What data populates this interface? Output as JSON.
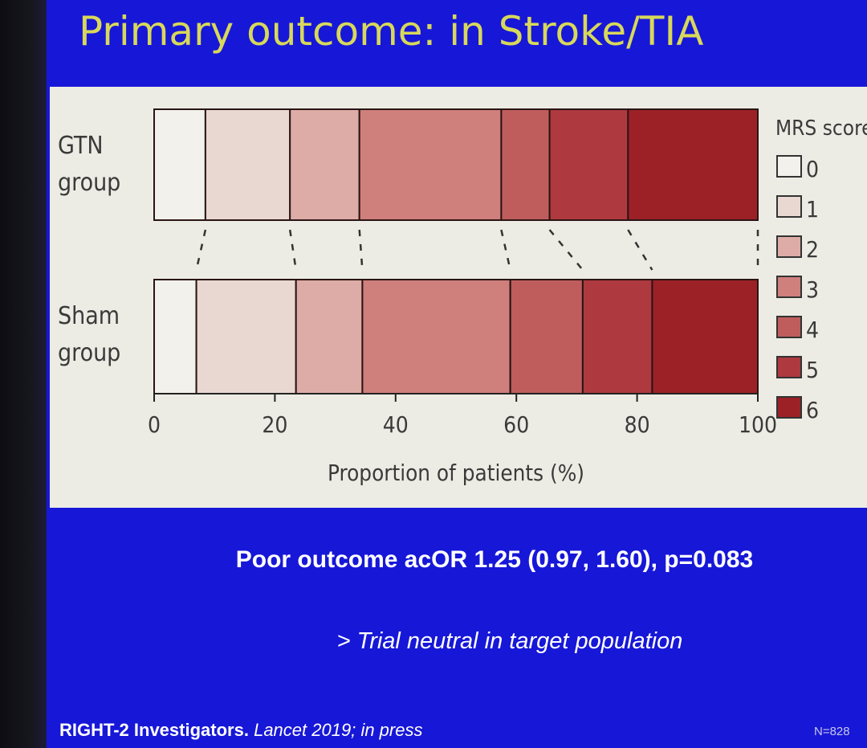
{
  "slide": {
    "title": "Primary outcome: in Stroke/TIA",
    "result_line": "Poor outcome acOR 1.25 (0.97, 1.60), p=0.083",
    "conclusion": "> Trial neutral in target population",
    "citation": {
      "authors": "RIGHT-2 Investigators.",
      "journal_year": "Lancet 2019;",
      "status": "in press"
    },
    "sample_size": "N=828"
  },
  "colors": {
    "slide_background": "#1717d8",
    "title": "#d8d85a",
    "panel_background": "#ecece4",
    "mrs": [
      "#f2f1ec",
      "#e9d8d1",
      "#deaca6",
      "#cf7f7c",
      "#bf5d5d",
      "#ae3a3f",
      "#9c2127"
    ]
  },
  "chart_data": {
    "type": "bar",
    "orientation": "horizontal",
    "stacked": true,
    "xlabel": "Proportion of patients (%)",
    "xlim": [
      0,
      100
    ],
    "xticks": [
      "0",
      "20",
      "40",
      "60",
      "80",
      "100"
    ],
    "categories": [
      {
        "label_lines": [
          "GTN",
          "group"
        ]
      },
      {
        "label_lines": [
          "Sham",
          "group"
        ]
      }
    ],
    "legend": {
      "title": "MRS score",
      "placement": "right",
      "entries": [
        "0",
        "1",
        "2",
        "3",
        "4",
        "5",
        "6"
      ]
    },
    "series": [
      {
        "name": "0",
        "values": [
          8.5,
          7.0
        ]
      },
      {
        "name": "1",
        "values": [
          14.0,
          16.5
        ]
      },
      {
        "name": "2",
        "values": [
          11.5,
          11.0
        ]
      },
      {
        "name": "3",
        "values": [
          23.5,
          24.5
        ]
      },
      {
        "name": "4",
        "values": [
          8.0,
          12.0
        ]
      },
      {
        "name": "5",
        "values": [
          13.0,
          11.5
        ]
      },
      {
        "name": "6",
        "values": [
          21.5,
          17.5
        ]
      }
    ]
  }
}
